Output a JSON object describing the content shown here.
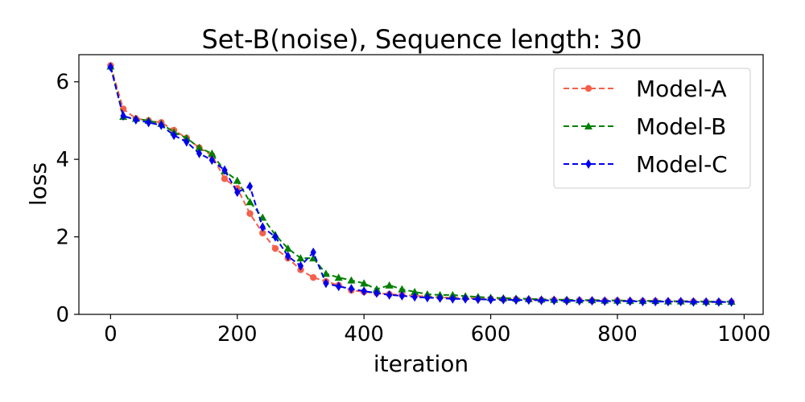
{
  "chart_data": {
    "type": "line",
    "title": "Set-B(noise), Sequence length: 30",
    "xlabel": "iteration",
    "ylabel": "loss",
    "xlim": [
      -50,
      1030
    ],
    "ylim": [
      0,
      6.7
    ],
    "xticks": [
      0,
      200,
      400,
      600,
      800,
      1000
    ],
    "yticks": [
      0,
      2,
      4,
      6
    ],
    "grid": false,
    "legend_position": "top-right",
    "x": [
      0,
      20,
      40,
      60,
      80,
      100,
      120,
      140,
      160,
      180,
      200,
      220,
      240,
      260,
      280,
      300,
      320,
      340,
      360,
      380,
      400,
      420,
      440,
      460,
      480,
      500,
      520,
      540,
      560,
      580,
      600,
      620,
      640,
      660,
      680,
      700,
      720,
      740,
      760,
      780,
      800,
      820,
      840,
      860,
      880,
      900,
      920,
      940,
      960,
      980
    ],
    "series": [
      {
        "name": "Model-A",
        "color": "#f4604a",
        "marker": "circle",
        "values": [
          6.42,
          5.3,
          5.05,
          5.0,
          4.95,
          4.75,
          4.55,
          4.3,
          4.1,
          3.5,
          3.25,
          2.6,
          2.1,
          1.7,
          1.45,
          1.15,
          0.95,
          0.85,
          0.75,
          0.62,
          0.58,
          0.55,
          0.52,
          0.5,
          0.48,
          0.46,
          0.44,
          0.43,
          0.42,
          0.41,
          0.4,
          0.39,
          0.39,
          0.38,
          0.37,
          0.37,
          0.36,
          0.36,
          0.35,
          0.35,
          0.35,
          0.34,
          0.34,
          0.34,
          0.33,
          0.33,
          0.33,
          0.32,
          0.32,
          0.32
        ]
      },
      {
        "name": "Model-B",
        "color": "#008000",
        "marker": "triangle",
        "values": [
          6.4,
          5.1,
          5.05,
          5.0,
          4.92,
          4.7,
          4.55,
          4.3,
          4.15,
          3.7,
          3.45,
          2.9,
          2.5,
          2.05,
          1.7,
          1.45,
          1.45,
          1.05,
          0.95,
          0.88,
          0.8,
          0.65,
          0.75,
          0.65,
          0.58,
          0.52,
          0.5,
          0.5,
          0.47,
          0.45,
          0.43,
          0.42,
          0.41,
          0.4,
          0.39,
          0.38,
          0.38,
          0.37,
          0.37,
          0.36,
          0.36,
          0.35,
          0.35,
          0.35,
          0.34,
          0.34,
          0.34,
          0.33,
          0.33,
          0.33
        ]
      },
      {
        "name": "Model-C",
        "color": "#0000ee",
        "marker": "diamond",
        "values": [
          6.38,
          5.12,
          5.02,
          4.95,
          4.88,
          4.62,
          4.45,
          4.15,
          3.98,
          3.72,
          3.15,
          3.3,
          2.25,
          2.0,
          1.5,
          1.25,
          1.6,
          0.8,
          0.72,
          0.66,
          0.6,
          0.55,
          0.5,
          0.48,
          0.45,
          0.43,
          0.42,
          0.4,
          0.4,
          0.39,
          0.38,
          0.38,
          0.37,
          0.37,
          0.36,
          0.36,
          0.35,
          0.35,
          0.35,
          0.34,
          0.34,
          0.34,
          0.33,
          0.33,
          0.33,
          0.33,
          0.32,
          0.32,
          0.32,
          0.32
        ]
      }
    ]
  }
}
